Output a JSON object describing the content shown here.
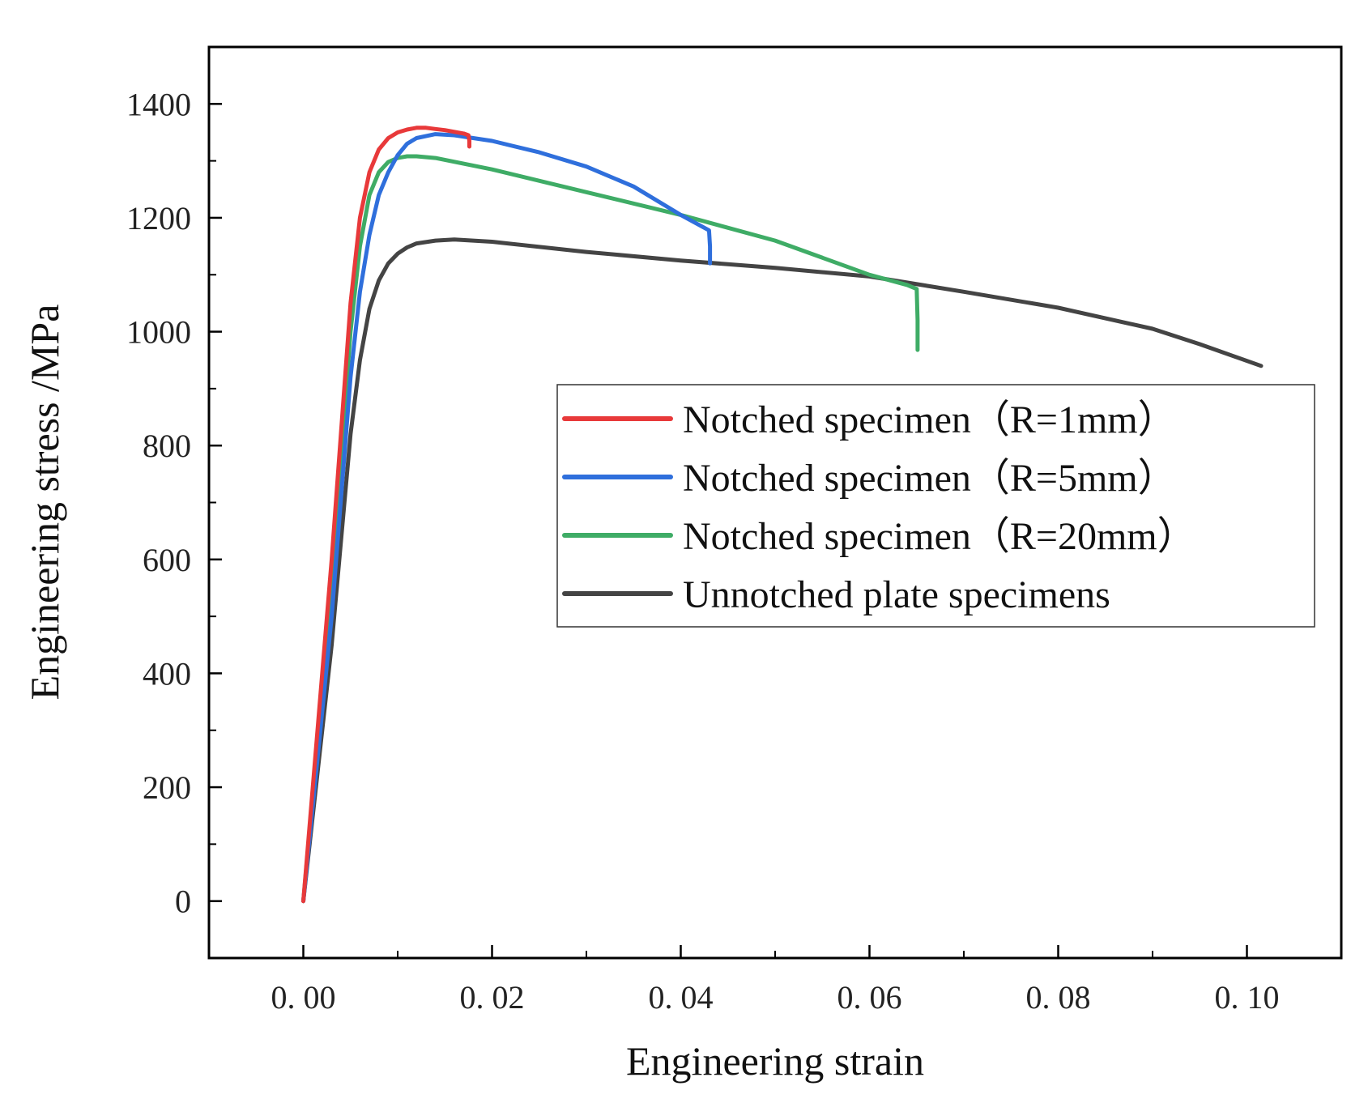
{
  "chart_data": {
    "type": "line",
    "title": "",
    "xlabel": "Engineering strain",
    "ylabel": "Engineering stress /MPa",
    "xlim": [
      -0.01,
      0.11
    ],
    "ylim": [
      -100,
      1500
    ],
    "xticks": [
      0.0,
      0.02,
      0.04,
      0.06,
      0.08,
      0.1
    ],
    "xtick_labels": [
      "0. 00",
      "0. 02",
      "0. 04",
      "0. 06",
      "0. 08",
      "0. 10"
    ],
    "yticks": [
      0,
      200,
      400,
      600,
      800,
      1000,
      1200,
      1400
    ],
    "ytick_labels": [
      "0",
      "200",
      "400",
      "600",
      "800",
      "1000",
      "1200",
      "1400"
    ],
    "grid": false,
    "legend_position": "center-right",
    "series": [
      {
        "name": "Notched specimen（R=1mm）",
        "color": "#e8393a",
        "x": [
          0.0,
          0.003,
          0.005,
          0.006,
          0.007,
          0.008,
          0.009,
          0.01,
          0.011,
          0.012,
          0.013,
          0.014,
          0.015,
          0.016,
          0.017,
          0.0175,
          0.0176,
          0.0176
        ],
        "y": [
          0,
          600,
          1050,
          1200,
          1280,
          1320,
          1340,
          1350,
          1355,
          1358,
          1358,
          1356,
          1354,
          1351,
          1348,
          1345,
          1335,
          1325
        ]
      },
      {
        "name": "Notched specimen（R=5mm）",
        "color": "#2f6fdc",
        "x": [
          0.0,
          0.003,
          0.005,
          0.006,
          0.007,
          0.008,
          0.009,
          0.01,
          0.011,
          0.012,
          0.014,
          0.016,
          0.02,
          0.025,
          0.03,
          0.035,
          0.04,
          0.043,
          0.0431,
          0.0431
        ],
        "y": [
          0,
          500,
          920,
          1070,
          1170,
          1240,
          1280,
          1310,
          1330,
          1340,
          1347,
          1345,
          1335,
          1315,
          1290,
          1255,
          1205,
          1178,
          1150,
          1120
        ]
      },
      {
        "name": "Notched specimen（R=20mm）",
        "color": "#3fac66",
        "x": [
          0.0,
          0.003,
          0.005,
          0.006,
          0.007,
          0.008,
          0.009,
          0.01,
          0.011,
          0.012,
          0.014,
          0.02,
          0.03,
          0.04,
          0.05,
          0.06,
          0.064,
          0.065,
          0.0651,
          0.0651
        ],
        "y": [
          0,
          560,
          1000,
          1150,
          1240,
          1280,
          1298,
          1305,
          1308,
          1308,
          1305,
          1285,
          1245,
          1205,
          1160,
          1100,
          1082,
          1075,
          1020,
          968
        ]
      },
      {
        "name": "Unnotched plate specimens",
        "color": "#444444",
        "x": [
          0.0,
          0.003,
          0.005,
          0.006,
          0.007,
          0.008,
          0.009,
          0.01,
          0.011,
          0.012,
          0.014,
          0.016,
          0.018,
          0.02,
          0.03,
          0.04,
          0.05,
          0.06,
          0.07,
          0.08,
          0.09,
          0.095,
          0.1015
        ],
        "y": [
          0,
          450,
          820,
          950,
          1040,
          1090,
          1120,
          1137,
          1148,
          1155,
          1160,
          1162,
          1160,
          1158,
          1140,
          1125,
          1112,
          1097,
          1070,
          1042,
          1005,
          978,
          940
        ]
      }
    ]
  }
}
